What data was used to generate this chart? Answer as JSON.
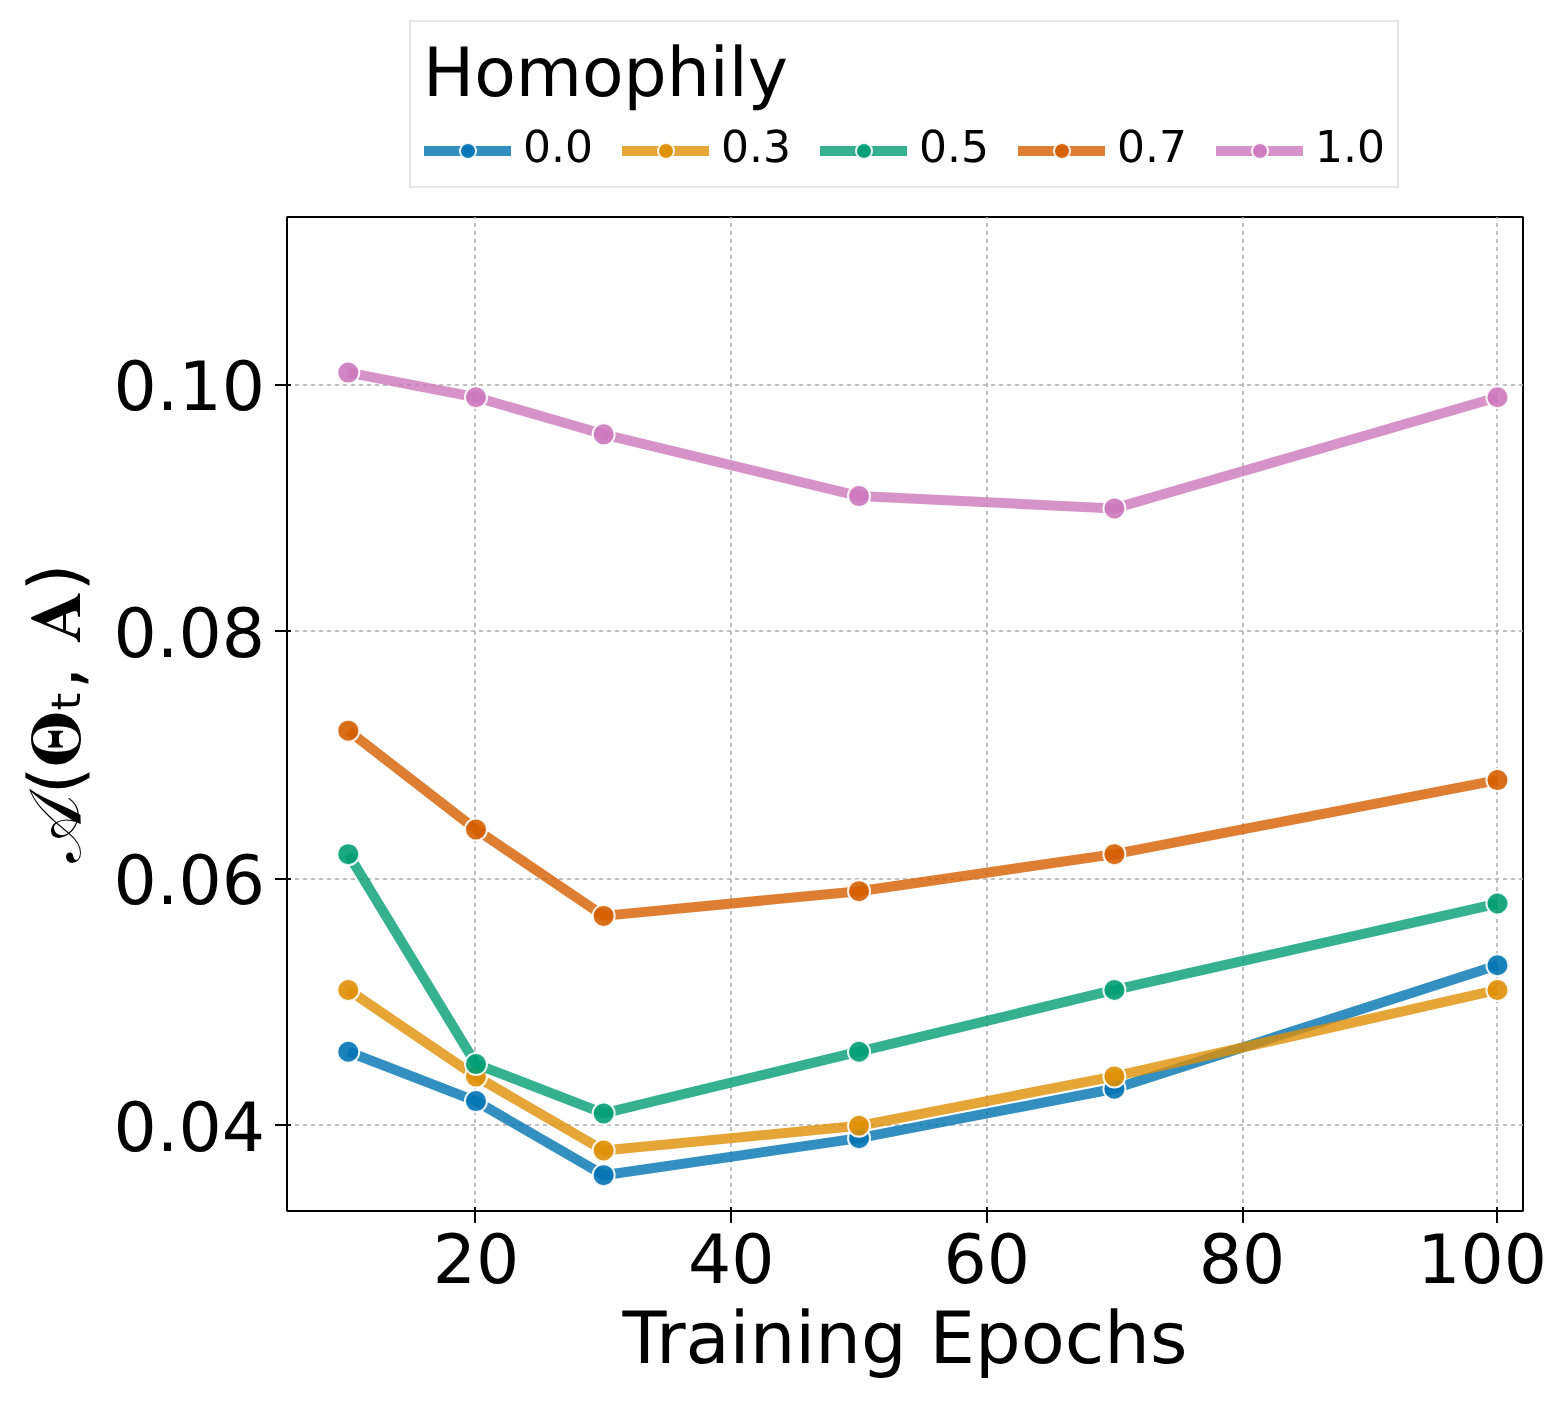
{
  "chart_data": {
    "type": "line",
    "xlabel": "Training Epochs",
    "ylabel": "𝒜(𝚯ₜ, 𝐀)",
    "legend_title": "Homophily",
    "x": [
      10,
      20,
      30,
      50,
      70,
      100
    ],
    "xlim": [
      5.2,
      102
    ],
    "ylim": [
      0.0331,
      0.1136
    ],
    "xticks": [
      20,
      40,
      60,
      80,
      100
    ],
    "yticks": [
      {
        "value": 0.04,
        "label": "0.04"
      },
      {
        "value": 0.06,
        "label": "0.06"
      },
      {
        "value": 0.08,
        "label": "0.08"
      },
      {
        "value": 0.1,
        "label": "0.10"
      }
    ],
    "grid": true,
    "legend": "top",
    "marker": "circle",
    "line_style": "solid",
    "series": [
      {
        "name": "0.0",
        "color": "#0173b2",
        "values": [
          0.046,
          0.042,
          0.036,
          0.039,
          0.043,
          0.053
        ]
      },
      {
        "name": "0.3",
        "color": "#de8f05",
        "values": [
          0.051,
          0.044,
          0.038,
          0.04,
          0.044,
          0.051
        ]
      },
      {
        "name": "0.5",
        "color": "#029e73",
        "values": [
          0.062,
          0.045,
          0.041,
          0.046,
          0.051,
          0.058
        ]
      },
      {
        "name": "0.7",
        "color": "#d55e00",
        "values": [
          0.072,
          0.064,
          0.057,
          0.059,
          0.062,
          0.068
        ]
      },
      {
        "name": "1.0",
        "color": "#cc78bc",
        "values": [
          0.101,
          0.099,
          0.096,
          0.091,
          0.09,
          0.099
        ]
      }
    ]
  }
}
